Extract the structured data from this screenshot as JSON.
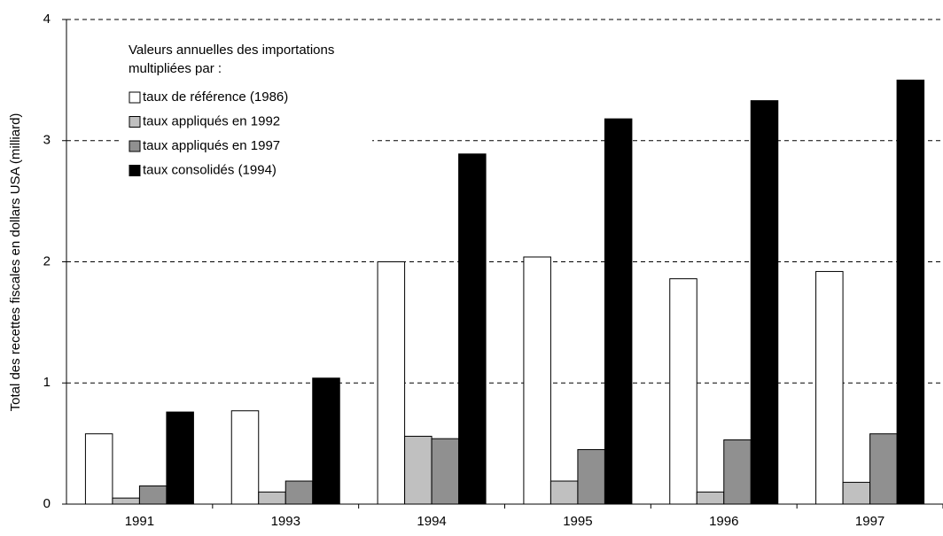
{
  "chart_data": {
    "type": "bar",
    "y_label": "Total des recettes fiscales en dollars USA (milliard)",
    "legend_title": [
      "Valeurs annuelles des importations",
      "multipliées par :"
    ],
    "categories": [
      "1991",
      "1993",
      "1994",
      "1995",
      "1996",
      "1997"
    ],
    "series": [
      {
        "name": "taux de référence (1986)",
        "color": "#ffffff",
        "values": [
          0.58,
          0.77,
          2.0,
          2.04,
          1.86,
          1.92
        ]
      },
      {
        "name": "taux appliqués en 1992",
        "color": "#c0c0c0",
        "values": [
          0.05,
          0.1,
          0.56,
          0.19,
          0.1,
          0.18
        ]
      },
      {
        "name": "taux appliqués en 1997",
        "color": "#909090",
        "values": [
          0.15,
          0.19,
          0.54,
          0.45,
          0.53,
          0.58
        ]
      },
      {
        "name": "taux consolidés (1994)",
        "color": "#000000",
        "values": [
          0.76,
          1.04,
          2.89,
          3.18,
          3.33,
          3.5
        ]
      }
    ],
    "ylim": [
      0,
      4
    ],
    "yticks": [
      0,
      1,
      2,
      3,
      4
    ],
    "grid": true,
    "legend": "upper left"
  }
}
